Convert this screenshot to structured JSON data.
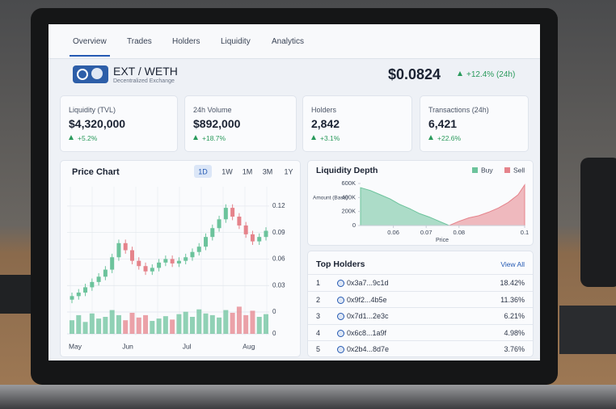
{
  "nav": {
    "tabs": [
      "Overview",
      "Trades",
      "Holders",
      "Liquidity",
      "Analytics"
    ],
    "active": "Overview"
  },
  "header": {
    "pair": "EXT / WETH",
    "subtitle": "Decentralized Exchange",
    "price": "$0.0824",
    "change": "+12.4% (24h)"
  },
  "stats": [
    {
      "label": "Liquidity (TVL)",
      "value": "$4,320,000",
      "change": "+5.2%"
    },
    {
      "label": "24h Volume",
      "value": "$892,000",
      "change": "+18.7%"
    },
    {
      "label": "Holders",
      "value": "2,842",
      "change": "+3.1%"
    },
    {
      "label": "Transactions (24h)",
      "value": "6,421",
      "change": "+22.6%"
    }
  ],
  "chart_data": [
    {
      "type": "candlestick",
      "title": "Price Chart",
      "timeframes": [
        "1D",
        "1W",
        "1M",
        "3M",
        "1Y"
      ],
      "active_timeframe": "1D",
      "categories": [
        "May",
        null,
        null,
        null,
        null,
        null,
        null,
        null,
        "Jun",
        null,
        null,
        null,
        null,
        null,
        null,
        null,
        null,
        "Jul",
        null,
        null,
        null,
        null,
        null,
        null,
        null,
        null,
        "Aug",
        null,
        null,
        null
      ],
      "open": [
        0.014,
        0.018,
        0.022,
        0.028,
        0.034,
        0.04,
        0.048,
        0.062,
        0.078,
        0.07,
        0.058,
        0.052,
        0.046,
        0.05,
        0.056,
        0.06,
        0.055,
        0.058,
        0.062,
        0.068,
        0.074,
        0.085,
        0.095,
        0.105,
        0.118,
        0.108,
        0.098,
        0.088,
        0.08,
        0.085
      ],
      "high": [
        0.022,
        0.026,
        0.032,
        0.038,
        0.044,
        0.052,
        0.066,
        0.082,
        0.082,
        0.074,
        0.062,
        0.056,
        0.054,
        0.06,
        0.064,
        0.064,
        0.062,
        0.066,
        0.072,
        0.078,
        0.089,
        0.099,
        0.109,
        0.122,
        0.122,
        0.112,
        0.102,
        0.092,
        0.089,
        0.096
      ],
      "low": [
        0.01,
        0.014,
        0.018,
        0.024,
        0.03,
        0.036,
        0.044,
        0.058,
        0.066,
        0.054,
        0.048,
        0.042,
        0.042,
        0.046,
        0.052,
        0.051,
        0.051,
        0.054,
        0.058,
        0.064,
        0.07,
        0.081,
        0.091,
        0.101,
        0.104,
        0.094,
        0.084,
        0.076,
        0.076,
        0.081
      ],
      "close": [
        0.018,
        0.022,
        0.028,
        0.034,
        0.04,
        0.048,
        0.062,
        0.078,
        0.07,
        0.058,
        0.052,
        0.046,
        0.05,
        0.056,
        0.06,
        0.055,
        0.058,
        0.062,
        0.068,
        0.074,
        0.085,
        0.095,
        0.105,
        0.118,
        0.108,
        0.098,
        0.088,
        0.08,
        0.085,
        0.092
      ],
      "volume": [
        40,
        55,
        35,
        60,
        45,
        50,
        70,
        55,
        40,
        62,
        48,
        55,
        38,
        45,
        52,
        42,
        58,
        65,
        50,
        72,
        60,
        55,
        48,
        70,
        62,
        80,
        55,
        68,
        50,
        58
      ],
      "up_color": "#6cc39c",
      "down_color": "#e5838b",
      "ylim": [
        0,
        0.13
      ],
      "yticks": [
        0,
        0.03,
        0.06,
        0.09,
        0.12
      ],
      "y2lim": [
        0,
        100
      ],
      "y2ticks": [
        0
      ],
      "grid": true
    },
    {
      "type": "area",
      "title": "Liquidity Depth",
      "x_label": "Price",
      "y_label": "Amount (Base)",
      "series": [
        {
          "name": "Buy",
          "color": "#6cc39c",
          "x": [
            0.05,
            0.053,
            0.056,
            0.059,
            0.062,
            0.065,
            0.068,
            0.071,
            0.074,
            0.077
          ],
          "values": [
            540000,
            500000,
            440000,
            380000,
            300000,
            240000,
            170000,
            120000,
            60000,
            0
          ]
        },
        {
          "name": "Sell",
          "color": "#e5838b",
          "x": [
            0.077,
            0.08,
            0.083,
            0.086,
            0.089,
            0.092,
            0.095,
            0.098,
            0.1
          ],
          "values": [
            0,
            60000,
            110000,
            140000,
            190000,
            250000,
            330000,
            440000,
            580000
          ]
        }
      ],
      "xlim": [
        0.05,
        0.1
      ],
      "xticks": [
        0.06,
        0.07,
        0.08,
        0.1
      ],
      "ylim": [
        0,
        600000
      ],
      "yticks": [
        0,
        {
          "value": 200000,
          "label": "200K"
        },
        {
          "value": 400000,
          "label": "400K"
        },
        {
          "value": 600000,
          "label": "600K"
        }
      ]
    }
  ],
  "holders": {
    "title": "Top Holders",
    "link": "View All",
    "rows": [
      [
        "1",
        "0x3a7...9c1d",
        "18.42%"
      ],
      [
        "2",
        "0x9f2...4b5e",
        "11.36%"
      ],
      [
        "3",
        "0x7d1...2e3c",
        "6.21%"
      ],
      [
        "4",
        "0x6c8...1a9f",
        "4.98%"
      ],
      [
        "5",
        "0x2b4...8d7e",
        "3.76%"
      ]
    ]
  }
}
